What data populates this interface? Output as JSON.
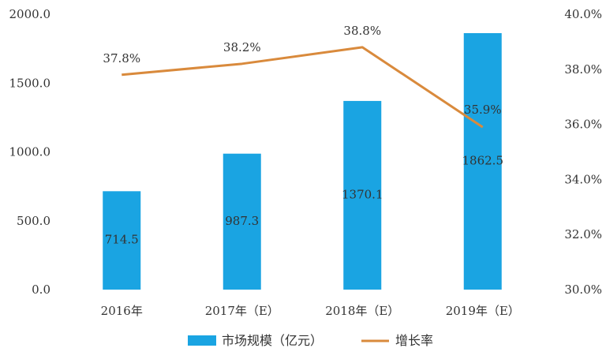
{
  "chart_data": {
    "type": "bar",
    "categories": [
      "2016年",
      "2017年（E）",
      "2018年（E）",
      "2019年（E）"
    ],
    "series": [
      {
        "name": "市场规模（亿元）",
        "type": "bar",
        "axis": "left",
        "color": "#1aa4e2",
        "values": [
          714.5,
          987.3,
          1370.1,
          1862.5
        ],
        "labels": [
          "714.5",
          "987.3",
          "1370.1",
          "1862.5"
        ]
      },
      {
        "name": "增长率",
        "type": "line",
        "axis": "right",
        "color": "#d98a3c",
        "values": [
          37.8,
          38.2,
          38.8,
          35.9
        ],
        "labels": [
          "37.8%",
          "38.2%",
          "38.8%",
          "35.9%"
        ]
      }
    ],
    "y_left": {
      "ylim": [
        0,
        2000
      ],
      "ticks": [
        0,
        500,
        1000,
        1500,
        2000
      ],
      "tick_labels": [
        "0.0",
        "500.0",
        "1000.0",
        "1500.0",
        "2000.0"
      ]
    },
    "y_right": {
      "ylim": [
        30,
        40
      ],
      "ticks": [
        30,
        32,
        34,
        36,
        38,
        40
      ],
      "tick_labels": [
        "30.0%",
        "32.0%",
        "34.0%",
        "36.0%",
        "38.0%",
        "40.0%"
      ]
    },
    "legend_position": "bottom",
    "grid": false
  }
}
